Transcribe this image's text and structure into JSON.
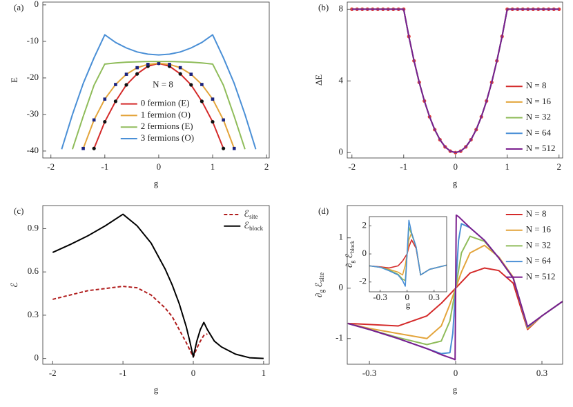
{
  "chart_data": [
    {
      "type": "line",
      "panel_label": "(a)",
      "x_label": "g",
      "y_label": "E",
      "xlim": [
        -2.15,
        2.05
      ],
      "ylim": [
        -41.9,
        0.75
      ],
      "xticks": [
        -2,
        -1,
        0,
        1,
        2
      ],
      "yticks": [
        0,
        -10,
        -20,
        -30,
        -40
      ],
      "legend": "lower center",
      "legend_title": "N = 8",
      "series": [
        {
          "name": "0 fermion (E)",
          "color": "#d42a2a",
          "marker": "circle",
          "marker_color": "#111111",
          "x": [
            -1.2,
            -1,
            -0.8,
            -0.6,
            -0.4,
            -0.2,
            0,
            0.2,
            0.4,
            0.6,
            0.8,
            1,
            1.2
          ],
          "values": [
            -39.3,
            -32,
            -26.4,
            -21.9,
            -18.9,
            -16.8,
            -16,
            -16.8,
            -18.9,
            -21.9,
            -26.4,
            -32,
            -39.3
          ]
        },
        {
          "name": "1 fermion (O)",
          "color": "#e3a43a",
          "marker": "square",
          "marker_color": "#1a237e",
          "x": [
            -1.4,
            -1.2,
            -1,
            -0.8,
            -0.6,
            -0.4,
            -0.2,
            0,
            0.2,
            0.4,
            0.6,
            0.8,
            1,
            1.2,
            1.4
          ],
          "values": [
            -39.3,
            -31.5,
            -25.8,
            -21.8,
            -19,
            -17.2,
            -16.3,
            -16,
            -16.3,
            -17.2,
            -19,
            -21.8,
            -25.8,
            -31.5,
            -39.3
          ]
        },
        {
          "name": "2 fermions (E)",
          "color": "#8fbc5a",
          "x": [
            -1.6,
            -1.4,
            -1.2,
            -1,
            -0.8,
            -0.6,
            -0.4,
            -0.2,
            0,
            0.2,
            0.4,
            0.6,
            0.8,
            1,
            1.2,
            1.4,
            1.6
          ],
          "values": [
            -39.5,
            -30.5,
            -22,
            -16.2,
            -15.9,
            -15.7,
            -15.6,
            -15.5,
            -15.5,
            -15.5,
            -15.6,
            -15.7,
            -15.9,
            -16.2,
            -22,
            -30.5,
            -39.5
          ]
        },
        {
          "name": "3 fermions (O)",
          "color": "#4a8fd6",
          "x": [
            -1.8,
            -1.6,
            -1.4,
            -1.2,
            -1,
            -0.8,
            -0.6,
            -0.4,
            -0.2,
            0,
            0.2,
            0.4,
            0.6,
            0.8,
            1,
            1.2,
            1.4,
            1.6,
            1.8
          ],
          "values": [
            -39.5,
            -30,
            -21.5,
            -14.5,
            -8.2,
            -10.3,
            -11.8,
            -12.9,
            -13.5,
            -13.7,
            -13.5,
            -12.9,
            -11.8,
            -10.3,
            -8.2,
            -14.5,
            -21.5,
            -30,
            -39.5
          ]
        }
      ]
    },
    {
      "type": "line",
      "panel_label": "(b)",
      "x_label": "g",
      "y_label": "ΔE",
      "xlim": [
        -2.09,
        2.07
      ],
      "ylim": [
        -0.3,
        8.4
      ],
      "xticks": [
        -2,
        -1,
        0,
        1,
        2
      ],
      "yticks": [
        0,
        4,
        8
      ],
      "legend": "lower right",
      "series": [
        {
          "name": "N = 8",
          "color": "#d42a2a",
          "marker": "circle",
          "marker_color": "#e53935",
          "x": [
            -2,
            -1.9,
            -1.8,
            -1.7,
            -1.6,
            -1.5,
            -1.4,
            -1.3,
            -1.2,
            -1.1,
            -1,
            -0.9,
            -0.8,
            -0.7,
            -0.6,
            -0.5,
            -0.4,
            -0.3,
            -0.2,
            -0.1,
            0,
            0.1,
            0.2,
            0.3,
            0.4,
            0.5,
            0.6,
            0.7,
            0.8,
            0.9,
            1,
            1.1,
            1.2,
            1.3,
            1.4,
            1.5,
            1.6,
            1.7,
            1.8,
            1.9,
            2
          ],
          "values": [
            8,
            8,
            8,
            8,
            8,
            8,
            8,
            8,
            8,
            8,
            8,
            6.48,
            5.12,
            3.92,
            2.88,
            2,
            1.28,
            0.72,
            0.32,
            0.08,
            0,
            0.08,
            0.32,
            0.72,
            1.28,
            2,
            2.88,
            3.92,
            5.12,
            6.48,
            8,
            8,
            8,
            8,
            8,
            8,
            8,
            8,
            8,
            8,
            8
          ]
        },
        {
          "name": "N = 16",
          "color": "#e3a43a",
          "x": [
            -2,
            -1,
            -0.9,
            -0.8,
            -0.7,
            -0.6,
            -0.5,
            -0.4,
            -0.3,
            -0.2,
            -0.1,
            0,
            0.1,
            0.2,
            0.3,
            0.4,
            0.5,
            0.6,
            0.7,
            0.8,
            0.9,
            1,
            2
          ],
          "values": [
            8,
            8,
            6.48,
            5.12,
            3.92,
            2.88,
            2,
            1.28,
            0.72,
            0.32,
            0.08,
            0,
            0.08,
            0.32,
            0.72,
            1.28,
            2,
            2.88,
            3.92,
            5.12,
            6.48,
            8,
            8
          ]
        },
        {
          "name": "N = 32",
          "color": "#8fbc5a",
          "x": [
            -2,
            -1,
            -0.9,
            -0.8,
            -0.7,
            -0.6,
            -0.5,
            -0.4,
            -0.3,
            -0.2,
            -0.1,
            0,
            0.1,
            0.2,
            0.3,
            0.4,
            0.5,
            0.6,
            0.7,
            0.8,
            0.9,
            1,
            2
          ],
          "values": [
            8,
            8,
            6.48,
            5.12,
            3.92,
            2.88,
            2,
            1.28,
            0.72,
            0.32,
            0.08,
            0,
            0.08,
            0.32,
            0.72,
            1.28,
            2,
            2.88,
            3.92,
            5.12,
            6.48,
            8,
            8
          ]
        },
        {
          "name": "N = 64",
          "color": "#4a8fd6",
          "x": [
            -2,
            -1,
            -0.9,
            -0.8,
            -0.7,
            -0.6,
            -0.5,
            -0.4,
            -0.3,
            -0.2,
            -0.1,
            0,
            0.1,
            0.2,
            0.3,
            0.4,
            0.5,
            0.6,
            0.7,
            0.8,
            0.9,
            1,
            2
          ],
          "values": [
            8,
            8,
            6.48,
            5.12,
            3.92,
            2.88,
            2,
            1.28,
            0.72,
            0.32,
            0.08,
            0,
            0.08,
            0.32,
            0.72,
            1.28,
            2,
            2.88,
            3.92,
            5.12,
            6.48,
            8,
            8
          ]
        },
        {
          "name": "N = 512",
          "color": "#7a1f8e",
          "x": [
            -2,
            -1,
            -0.9,
            -0.8,
            -0.7,
            -0.6,
            -0.5,
            -0.4,
            -0.3,
            -0.2,
            -0.1,
            0,
            0.1,
            0.2,
            0.3,
            0.4,
            0.5,
            0.6,
            0.7,
            0.8,
            0.9,
            1,
            2
          ],
          "values": [
            8,
            8,
            6.48,
            5.12,
            3.92,
            2.88,
            2,
            1.28,
            0.72,
            0.32,
            0.08,
            0,
            0.08,
            0.32,
            0.72,
            1.28,
            2,
            2.88,
            3.92,
            5.12,
            6.48,
            8,
            8
          ]
        }
      ]
    },
    {
      "type": "line",
      "panel_label": "(c)",
      "x_label": "g",
      "y_label": "ℰ",
      "xlim": [
        -2.14,
        1.08
      ],
      "ylim": [
        -0.04,
        1.06
      ],
      "xticks": [
        -2,
        -1,
        0,
        1
      ],
      "yticks": [
        0,
        0.3,
        0.6,
        0.9
      ],
      "legend": "upper right",
      "series": [
        {
          "name": [
            {
              "text": "ℰ",
              "sub": "site"
            }
          ],
          "color": "#b01c1c",
          "dash": true,
          "x": [
            -2,
            -1.5,
            -1,
            -0.8,
            -0.6,
            -0.4,
            -0.3,
            -0.2,
            -0.1,
            -0.05,
            0,
            0.05,
            0.1,
            0.15,
            0.2
          ],
          "values": [
            0.41,
            0.47,
            0.5,
            0.49,
            0.44,
            0.35,
            0.29,
            0.2,
            0.11,
            0.06,
            0.01,
            0.07,
            0.12,
            0.16,
            0.17
          ]
        },
        {
          "name": [
            {
              "text": "ℰ",
              "sub": "block"
            }
          ],
          "color": "#000000",
          "x": [
            -2,
            -1.75,
            -1.5,
            -1.25,
            -1,
            -0.8,
            -0.6,
            -0.4,
            -0.3,
            -0.2,
            -0.1,
            -0.05,
            0,
            0.05,
            0.1,
            0.15,
            0.2,
            0.3,
            0.4,
            0.6,
            0.8,
            1
          ],
          "values": [
            0.735,
            0.79,
            0.85,
            0.92,
            1,
            0.92,
            0.8,
            0.62,
            0.51,
            0.38,
            0.22,
            0.12,
            0.01,
            0.12,
            0.2,
            0.25,
            0.2,
            0.12,
            0.08,
            0.03,
            0.005,
            0
          ]
        }
      ]
    },
    {
      "type": "line",
      "panel_label": "(d)",
      "x_label": "g",
      "y_label": [
        {
          "text": "∂",
          "sub": "g"
        },
        {
          "text": "ℰ",
          "sub": "site"
        }
      ],
      "xlim": [
        -0.377,
        0.372
      ],
      "ylim": [
        -1.51,
        1.64
      ],
      "xticks": [
        -0.3,
        0,
        0.3
      ],
      "yticks": [
        -1,
        0,
        1
      ],
      "legend": "upper right",
      "series": [
        {
          "name": "N = 8",
          "color": "#d42a2a",
          "x": [
            -0.375,
            -0.3,
            -0.2,
            -0.1,
            -0.05,
            -0.02,
            0,
            0.02,
            0.05,
            0.1,
            0.15,
            0.2,
            0.25,
            0.3,
            0.375
          ],
          "values": [
            -0.7,
            -0.72,
            -0.75,
            -0.55,
            -0.3,
            -0.12,
            0,
            0.12,
            0.3,
            0.4,
            0.35,
            0.1,
            -0.82,
            -0.55,
            -0.25
          ]
        },
        {
          "name": "N = 16",
          "color": "#e3a43a",
          "x": [
            -0.375,
            -0.3,
            -0.2,
            -0.1,
            -0.05,
            -0.02,
            0,
            0.02,
            0.05,
            0.1,
            0.15,
            0.2,
            0.25,
            0.3,
            0.375
          ],
          "values": [
            -0.7,
            -0.8,
            -0.9,
            -1,
            -0.75,
            -0.32,
            0,
            0.32,
            0.7,
            0.85,
            0.62,
            0.22,
            -0.8,
            -0.55,
            -0.25
          ]
        },
        {
          "name": "N = 32",
          "color": "#8fbc5a",
          "x": [
            -0.375,
            -0.3,
            -0.2,
            -0.1,
            -0.05,
            -0.02,
            0,
            0.02,
            0.05,
            0.1,
            0.15,
            0.2,
            0.25,
            0.3,
            0.375
          ],
          "values": [
            -0.7,
            -0.82,
            -0.98,
            -1.12,
            -1.05,
            -0.65,
            0,
            0.7,
            1.03,
            0.93,
            0.6,
            0.2,
            -0.78,
            -0.55,
            -0.25
          ]
        },
        {
          "name": "N = 64",
          "color": "#4a8fd6",
          "x": [
            -0.375,
            -0.3,
            -0.2,
            -0.1,
            -0.05,
            -0.02,
            -0.01,
            0,
            0.01,
            0.02,
            0.05,
            0.1,
            0.15,
            0.2,
            0.25,
            0.3,
            0.375
          ],
          "values": [
            -0.7,
            -0.82,
            -1,
            -1.2,
            -1.3,
            -1.28,
            -0.9,
            0,
            0.95,
            1.28,
            1.2,
            0.95,
            0.6,
            0.2,
            -0.77,
            -0.55,
            -0.25
          ]
        },
        {
          "name": "N = 512",
          "color": "#7a1f8e",
          "x": [
            -0.375,
            -0.3,
            -0.2,
            -0.1,
            -0.05,
            -0.01,
            -0.002,
            0.002,
            0.01,
            0.05,
            0.1,
            0.15,
            0.2,
            0.25,
            0.3,
            0.375
          ],
          "values": [
            -0.7,
            -0.82,
            -1,
            -1.2,
            -1.32,
            -1.4,
            -1.42,
            1.45,
            1.42,
            1.2,
            0.95,
            0.6,
            0.2,
            -0.76,
            -0.55,
            -0.25
          ]
        }
      ],
      "inset": {
        "type": "line",
        "x_label": "g",
        "y_label": [
          {
            "text": "∂",
            "sub": "g"
          },
          {
            "text": "ℰ",
            "sub": "block"
          }
        ],
        "xlim": [
          -0.42,
          0.44
        ],
        "ylim": [
          -2.7,
          2.66
        ],
        "xticks": [
          -0.3,
          0,
          0.3
        ],
        "yticks": [
          -2,
          0,
          2
        ],
        "series": [
          {
            "color": "#d42a2a",
            "x": [
              -0.42,
              -0.3,
              -0.2,
              -0.1,
              -0.05,
              -0.02,
              0,
              0.02,
              0.05,
              0.1,
              0.15,
              0.25,
              0.44
            ],
            "values": [
              -0.85,
              -0.92,
              -1,
              -0.85,
              -0.5,
              -0.2,
              0,
              0.5,
              1,
              0.4,
              -1.5,
              -1.1,
              -0.8
            ]
          },
          {
            "color": "#e3a43a",
            "x": [
              -0.42,
              -0.3,
              -0.2,
              -0.1,
              -0.05,
              -0.02,
              0,
              0.02,
              0.05,
              0.1,
              0.15,
              0.25,
              0.44
            ],
            "values": [
              -0.85,
              -0.95,
              -1.1,
              -1.3,
              -1.5,
              -0.8,
              0,
              1,
              1.5,
              0.5,
              -1.5,
              -1.1,
              -0.8
            ]
          },
          {
            "color": "#8fbc5a",
            "x": [
              -0.42,
              -0.3,
              -0.2,
              -0.1,
              -0.05,
              -0.02,
              0,
              0.02,
              0.05,
              0.1,
              0.15,
              0.25,
              0.44
            ],
            "values": [
              -0.85,
              -0.95,
              -1.15,
              -1.45,
              -1.8,
              -1.9,
              0,
              1.9,
              1.4,
              0.5,
              -1.5,
              -1.1,
              -0.8
            ]
          },
          {
            "color": "#4a8fd6",
            "x": [
              -0.42,
              -0.3,
              -0.2,
              -0.1,
              -0.05,
              -0.02,
              0,
              0.02,
              0.05,
              0.1,
              0.15,
              0.25,
              0.44
            ],
            "values": [
              -0.85,
              -0.95,
              -1.2,
              -1.5,
              -1.9,
              -2.3,
              0,
              2.4,
              1.5,
              0.5,
              -1.5,
              -1.1,
              -0.8
            ]
          }
        ]
      }
    }
  ]
}
